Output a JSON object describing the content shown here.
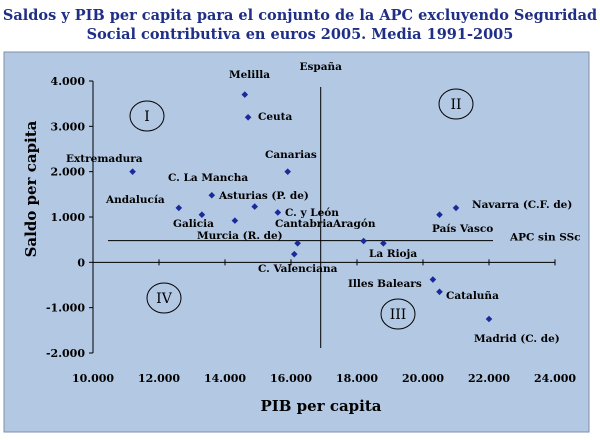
{
  "chart_data": {
    "type": "scatter",
    "title_lines": [
      "Saldos y PIB per capita para el conjunto de la APC excluyendo Seguridad",
      "Social contributiva en euros 2005. Media 1991-2005"
    ],
    "xlabel": "PIB per capita",
    "ylabel": "Saldo per capita",
    "xlim": [
      10000,
      24000
    ],
    "ylim": [
      -2000,
      4000
    ],
    "x_ticks": [
      10000,
      12000,
      14000,
      16000,
      18000,
      20000,
      22000,
      24000
    ],
    "x_tick_labels": [
      "10.000",
      "12.000",
      "14.000",
      "16.000",
      "18.000",
      "20.000",
      "22.000",
      "24.000"
    ],
    "y_ticks": [
      4000,
      3000,
      2000,
      1000,
      0,
      -1000,
      -2000
    ],
    "y_tick_labels": [
      "4.000",
      "3.000",
      "2.000",
      "1.000",
      "0",
      "-1.000",
      "-2.000"
    ],
    "grid": false,
    "marker_color": "#1a2a9a",
    "plot_background": "#b3c8e2",
    "reference_lines": {
      "vertical": {
        "x": 16900,
        "label": "España"
      },
      "horizontal": {
        "y": 480,
        "label": "APC sin SSc"
      }
    },
    "quadrant_labels": [
      "I",
      "II",
      "III",
      "IV"
    ],
    "points": [
      {
        "label": "Melilla",
        "x": 14600,
        "y": 3700
      },
      {
        "label": "Ceuta",
        "x": 14700,
        "y": 3200
      },
      {
        "label": "Extremadura",
        "x": 11200,
        "y": 2000
      },
      {
        "label": "Canarias",
        "x": 15900,
        "y": 2000
      },
      {
        "label": "C. La Mancha",
        "x": 13600,
        "y": 1480
      },
      {
        "label": "Asturias (P. de)",
        "x": 14900,
        "y": 1230
      },
      {
        "label": "Andalucía",
        "x": 12600,
        "y": 1200
      },
      {
        "label": "C. y León",
        "x": 15600,
        "y": 1100
      },
      {
        "label": "Galicia",
        "x": 13300,
        "y": 1050
      },
      {
        "label": "Murcia (R. de)",
        "x": 14300,
        "y": 920
      },
      {
        "label": "Cantabria",
        "x": 16200,
        "y": 420
      },
      {
        "label": "Aragón",
        "x": 18200,
        "y": 470
      },
      {
        "label": "La Rioja",
        "x": 18800,
        "y": 420
      },
      {
        "label": "C. Valenciana",
        "x": 16100,
        "y": 180
      },
      {
        "label": "Navarra (C.F. de)",
        "x": 21000,
        "y": 1200
      },
      {
        "label": "País Vasco",
        "x": 20500,
        "y": 1050
      },
      {
        "label": "Illes Balears",
        "x": 20300,
        "y": -380
      },
      {
        "label": "Cataluña",
        "x": 20500,
        "y": -650
      },
      {
        "label": "Madrid (C. de)",
        "x": 22000,
        "y": -1250
      }
    ]
  }
}
